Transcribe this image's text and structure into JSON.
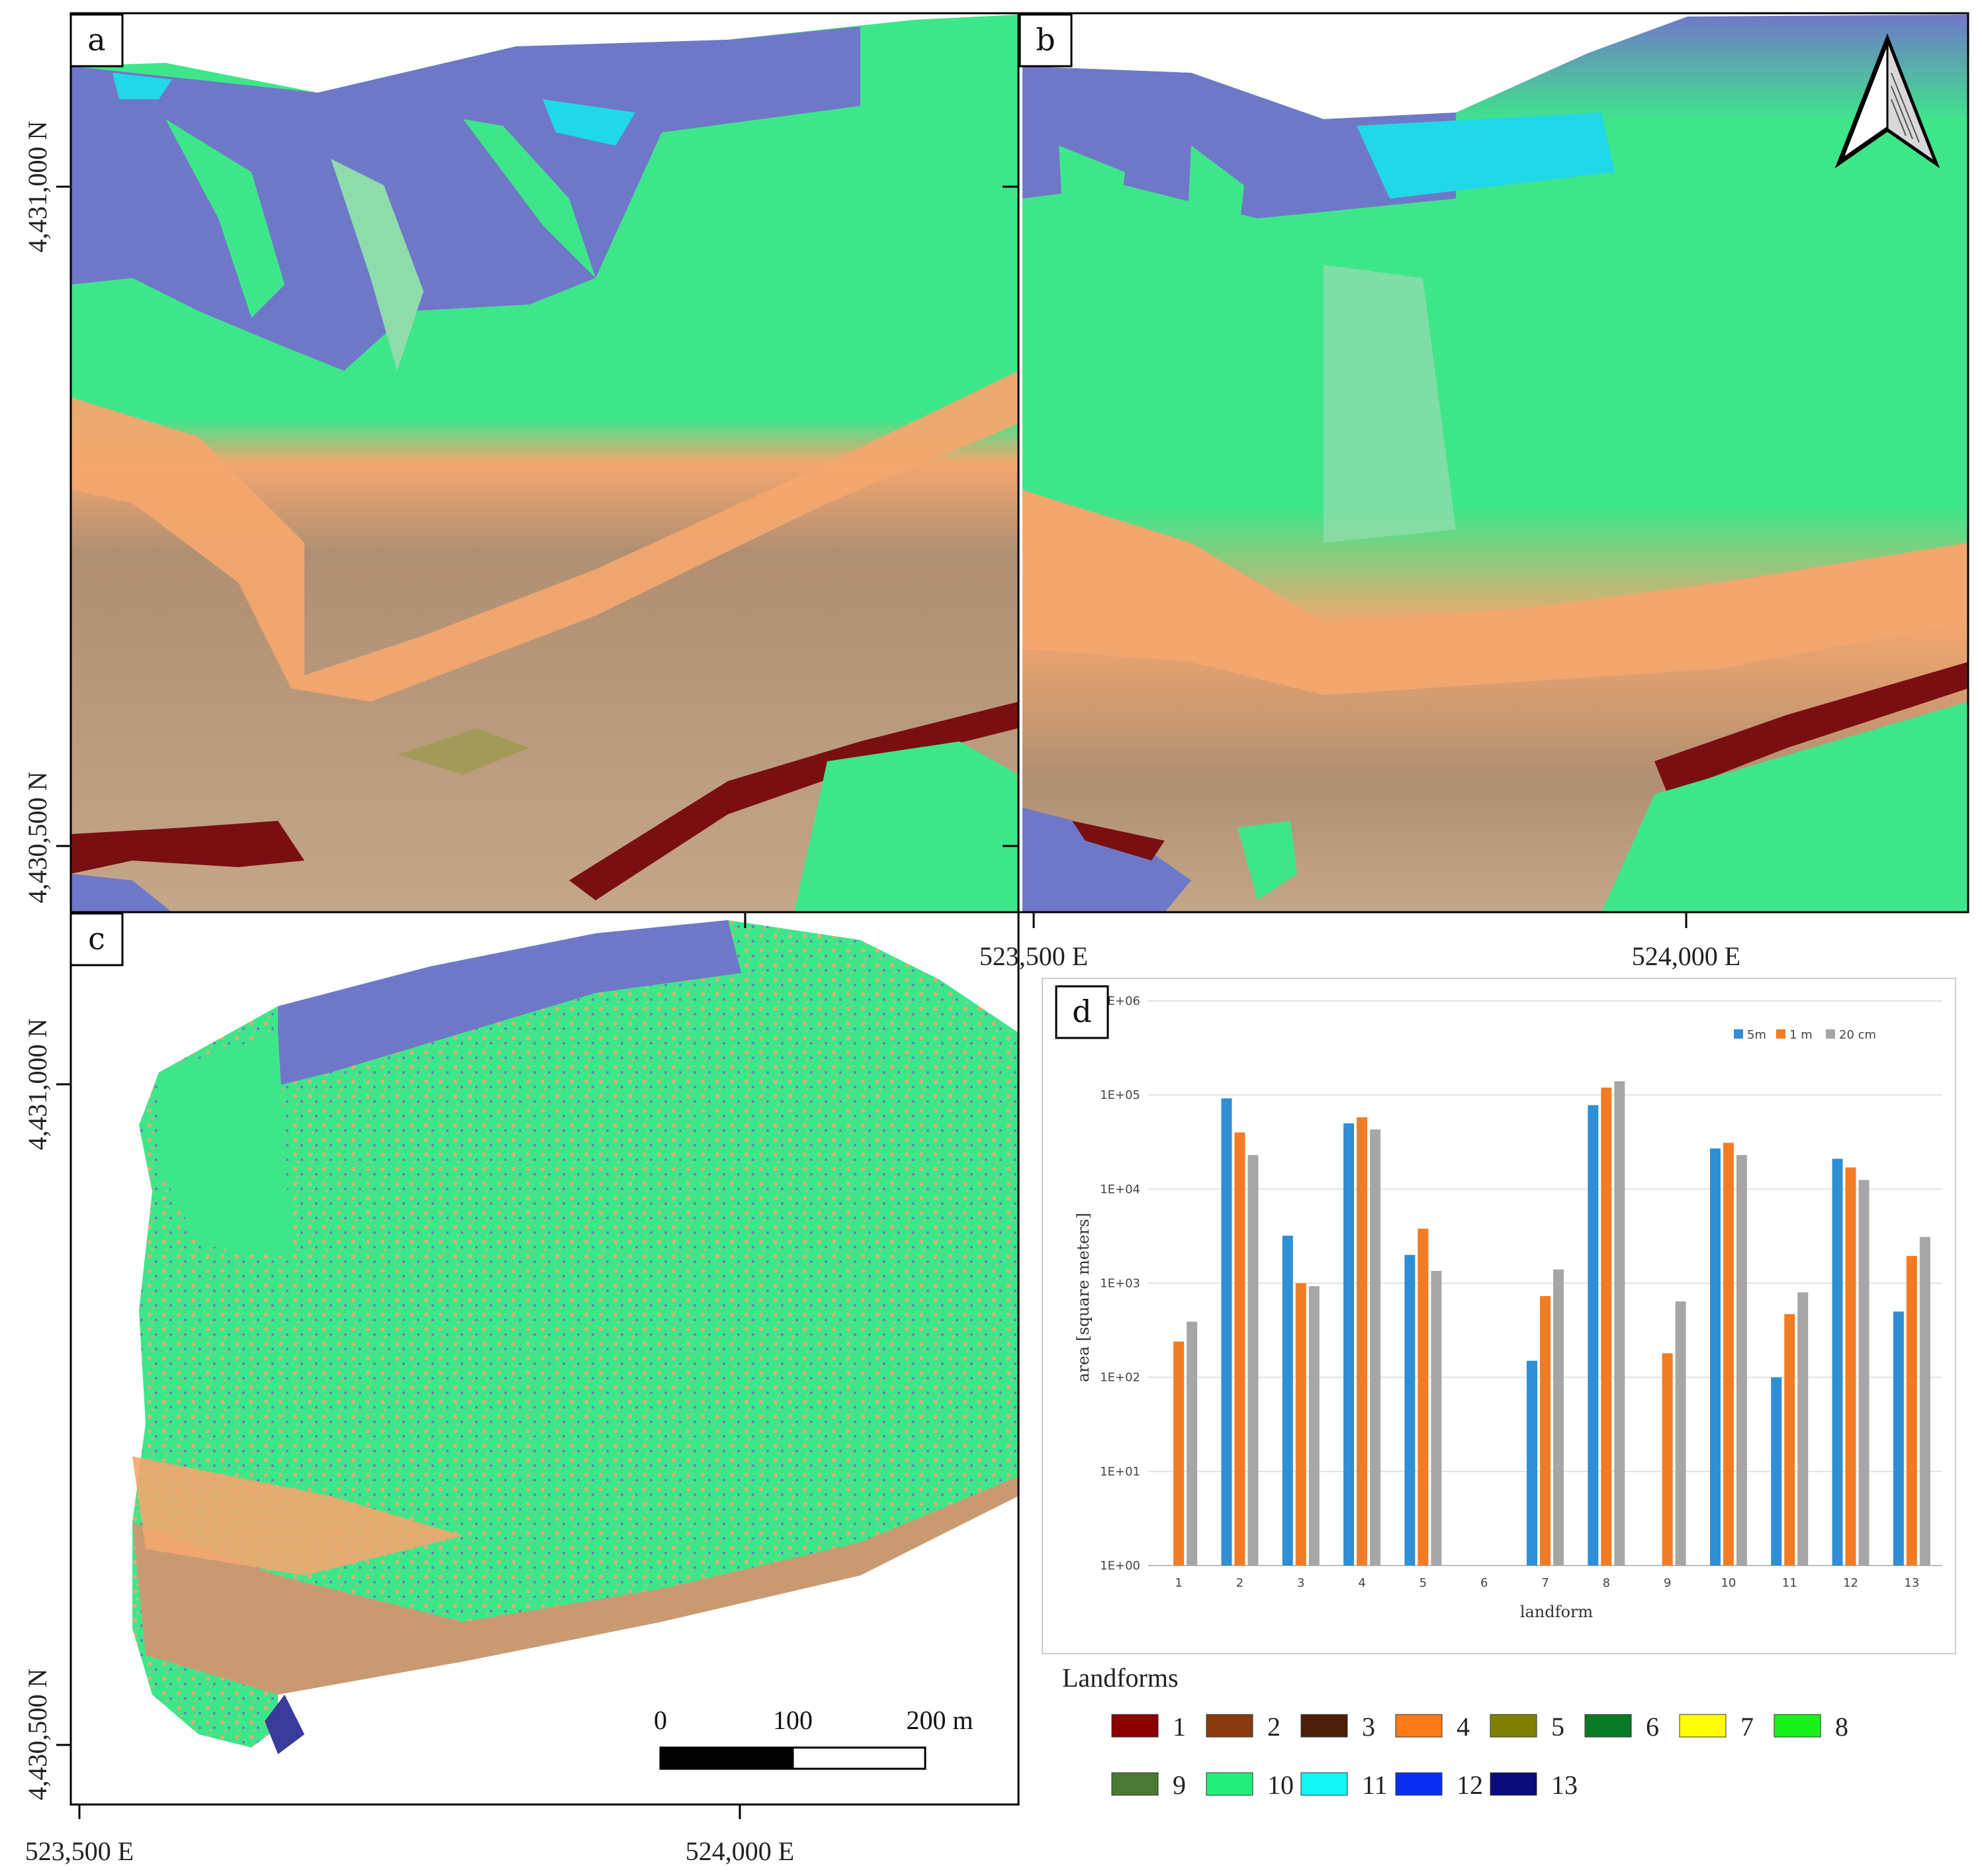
{
  "panels": {
    "a": "a",
    "b": "b",
    "c": "c",
    "d": "d"
  },
  "coords": {
    "y_top_a": "4,431,000 N",
    "y_bot_a": "4,430,500 N",
    "y_top_c": "4,431,000 N",
    "y_bot_c": "4,430,500 N",
    "x_mid_1": "523,500 E",
    "x_mid_2": "524,000 E",
    "x_bot_1": "523,500 E",
    "x_bot_2": "524,000 E"
  },
  "scale_bar": {
    "labels": [
      "0",
      "100",
      "200 m"
    ]
  },
  "north_arrow": {
    "icon": "north-arrow-icon"
  },
  "map_colors": {
    "brown_tan": "#b08f72",
    "orange": "#f3a66e",
    "green": "#3ee68a",
    "light_green": "#8fdcab",
    "blue_purple": "#6f78c8",
    "cyan": "#20d8e8",
    "dark_red": "#7a0f12",
    "olive": "#a39a5a"
  },
  "legend": {
    "title": "Landforms",
    "items": [
      {
        "label": "1",
        "color": "#8b0000"
      },
      {
        "label": "2",
        "color": "#8b3a10"
      },
      {
        "label": "3",
        "color": "#4a1e08"
      },
      {
        "label": "4",
        "color": "#ff7b17"
      },
      {
        "label": "5",
        "color": "#808000"
      },
      {
        "label": "6",
        "color": "#0b7a24"
      },
      {
        "label": "7",
        "color": "#ffff00"
      },
      {
        "label": "8",
        "color": "#19f219"
      },
      {
        "label": "9",
        "color": "#4a7a32"
      },
      {
        "label": "10",
        "color": "#20f07a"
      },
      {
        "label": "11",
        "color": "#12f6f6"
      },
      {
        "label": "12",
        "color": "#0a2ef0"
      },
      {
        "label": "13",
        "color": "#0a0a7a"
      }
    ]
  },
  "chart_data": {
    "type": "bar",
    "xlabel": "landform",
    "ylabel": "area [square meters]",
    "yscale": "log",
    "ylim": [
      1,
      1000000
    ],
    "y_ticks": [
      "1E+00",
      "1E+01",
      "1E+02",
      "1E+03",
      "1E+04",
      "1E+05",
      "1E+06"
    ],
    "legend_position": "top-right",
    "categories": [
      "1",
      "2",
      "3",
      "4",
      "5",
      "6",
      "7",
      "8",
      "9",
      "10",
      "11",
      "12",
      "13"
    ],
    "series": [
      {
        "name": "5m",
        "color": "#2e8fd6",
        "values": [
          null,
          92000,
          3200,
          50000,
          2000,
          null,
          150,
          78000,
          null,
          27000,
          100,
          21000,
          500
        ]
      },
      {
        "name": "1 m",
        "color": "#f27c24",
        "values": [
          240,
          40000,
          1000,
          58000,
          3800,
          null,
          730,
          120000,
          180,
          31000,
          470,
          17000,
          1950
        ]
      },
      {
        "name": "20 cm",
        "color": "#a6a6a6",
        "values": [
          390,
          23000,
          930,
          43000,
          1350,
          null,
          1400,
          140000,
          640,
          23000,
          800,
          12500,
          3100
        ]
      }
    ]
  }
}
